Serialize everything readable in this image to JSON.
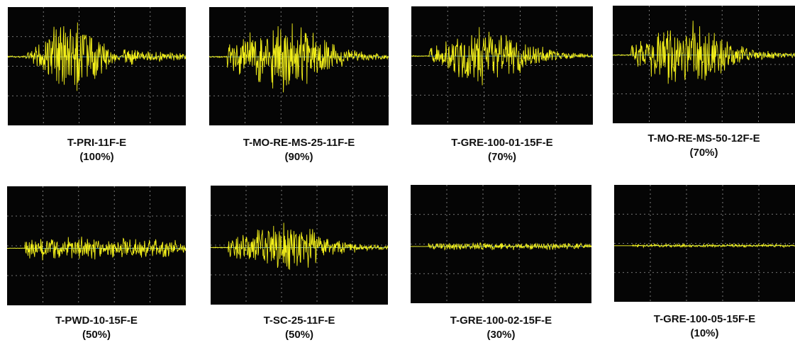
{
  "panels": [
    {
      "name": "T-PRI-11F-E",
      "percent": "(100%)",
      "amplitude": 1.0,
      "envelope": "peaked"
    },
    {
      "name": "T-MO-RE-MS-25-11F-E",
      "percent": "(90%)",
      "amplitude": 0.82,
      "envelope": "broad"
    },
    {
      "name": "T-GRE-100-01-15F-E",
      "percent": "(70%)",
      "amplitude": 0.62,
      "envelope": "broad"
    },
    {
      "name": "T-MO-RE-MS-50-12F-E",
      "percent": "(70%)",
      "amplitude": 0.72,
      "envelope": "broad"
    },
    {
      "name": "T-PWD-10-15F-E",
      "percent": "(50%)",
      "amplitude": 0.26,
      "envelope": "flat"
    },
    {
      "name": "T-SC-25-11F-E",
      "percent": "(50%)",
      "amplitude": 0.6,
      "envelope": "broad"
    },
    {
      "name": "T-GRE-100-02-15F-E",
      "percent": "(30%)",
      "amplitude": 0.09,
      "envelope": "flat"
    },
    {
      "name": "T-GRE-100-05-15F-E",
      "percent": "(10%)",
      "amplitude": 0.04,
      "envelope": "flat"
    }
  ],
  "colors": {
    "trace": "#f2ef1a",
    "screen": "#050505",
    "grid": "#9a9a9a",
    "baseline": "#7fd3e6"
  }
}
